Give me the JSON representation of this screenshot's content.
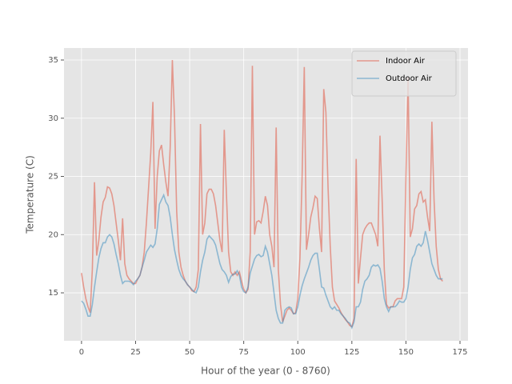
{
  "chart_data": {
    "type": "line",
    "xlabel": "Hour of the year (0 - 8760)",
    "ylabel": "Temperature (C)",
    "x": [
      0,
      1,
      2,
      3,
      4,
      5,
      6,
      7,
      8,
      9,
      10,
      11,
      12,
      13,
      14,
      15,
      16,
      17,
      18,
      19,
      20,
      21,
      22,
      23,
      24,
      25,
      26,
      27,
      28,
      29,
      30,
      31,
      32,
      33,
      34,
      35,
      36,
      37,
      38,
      39,
      40,
      41,
      42,
      43,
      44,
      45,
      46,
      47,
      48,
      49,
      50,
      51,
      52,
      53,
      54,
      55,
      56,
      57,
      58,
      59,
      60,
      61,
      62,
      63,
      64,
      65,
      66,
      67,
      68,
      69,
      70,
      71,
      72,
      73,
      74,
      75,
      76,
      77,
      78,
      79,
      80,
      81,
      82,
      83,
      84,
      85,
      86,
      87,
      88,
      89,
      90,
      91,
      92,
      93,
      94,
      95,
      96,
      97,
      98,
      99,
      100,
      101,
      102,
      103,
      104,
      105,
      106,
      107,
      108,
      109,
      110,
      111,
      112,
      113,
      114,
      115,
      116,
      117,
      118,
      119,
      120,
      121,
      122,
      123,
      124,
      125,
      126,
      127,
      128,
      129,
      130,
      131,
      132,
      133,
      134,
      135,
      136,
      137,
      138,
      139,
      140,
      141,
      142,
      143,
      144,
      145,
      146,
      147,
      148,
      149,
      150,
      151,
      152,
      153,
      154,
      155,
      156,
      157,
      158,
      159,
      160,
      161,
      162,
      163,
      164,
      165,
      166,
      167
    ],
    "series": [
      {
        "name": "Indoor Air",
        "color": "#E24A33",
        "values": [
          16.7,
          15.5,
          14.5,
          13.8,
          13.3,
          17,
          24.5,
          18.2,
          19.5,
          21.5,
          22.8,
          23.2,
          24.1,
          24,
          23.5,
          22.5,
          21,
          19.5,
          17.8,
          21.4,
          17.5,
          16.5,
          16.2,
          16,
          15.8,
          15.8,
          16.2,
          16.5,
          17.2,
          18.5,
          21,
          24,
          27,
          31.4,
          20.5,
          25,
          27.2,
          27.7,
          26,
          24.5,
          23.3,
          27.5,
          35,
          30,
          22,
          18.5,
          17.2,
          16.5,
          16,
          15.7,
          15.5,
          15.2,
          15.1,
          15.5,
          17,
          29.5,
          20,
          21,
          23.5,
          23.9,
          23.9,
          23.5,
          22.5,
          21,
          19.5,
          18.5,
          29,
          23.5,
          18.5,
          16.8,
          16.5,
          16.8,
          16.5,
          16.8,
          16,
          15.3,
          15,
          15.3,
          18.5,
          34.5,
          20,
          21.1,
          21.2,
          21,
          22,
          23.3,
          22.5,
          20,
          19,
          17.2,
          29.2,
          17,
          14,
          12.5,
          13,
          13.5,
          13.7,
          13.5,
          13.2,
          13.3,
          14.5,
          18,
          25,
          34.4,
          18.7,
          20,
          21.5,
          22.3,
          23.3,
          23.1,
          20.5,
          18.5,
          32.5,
          30.5,
          24,
          19,
          15.5,
          14.3,
          14,
          13.7,
          13.3,
          13,
          12.7,
          12.5,
          12.2,
          12.1,
          12.8,
          26.5,
          15.8,
          18,
          20,
          20.5,
          20.8,
          21,
          21,
          20.5,
          20,
          19,
          28.5,
          23,
          17,
          14,
          13.7,
          13.8,
          13.8,
          14.3,
          14.5,
          14.5,
          14.5,
          15.5,
          25,
          33.5,
          19.8,
          20.5,
          22.2,
          22.5,
          23.5,
          23.7,
          22.8,
          23,
          21.5,
          20.3,
          29.7,
          23,
          19,
          17,
          16.2,
          16
        ]
      },
      {
        "name": "Outdoor Air",
        "color": "#348ABD",
        "values": [
          14.3,
          14.1,
          13.6,
          13,
          13,
          14,
          15.5,
          16.8,
          18,
          18.8,
          19.3,
          19.3,
          19.8,
          20,
          19.8,
          19.2,
          18.3,
          17.5,
          16.5,
          15.8,
          16,
          16,
          16,
          15.9,
          15.7,
          16,
          16.2,
          16.5,
          17.2,
          17.8,
          18.5,
          18.8,
          19.1,
          18.9,
          19.2,
          20.5,
          22.6,
          23,
          23.4,
          22.8,
          22.5,
          21.5,
          20,
          18.7,
          17.8,
          17,
          16.5,
          16.2,
          16,
          15.7,
          15.5,
          15.3,
          15.1,
          15,
          15.5,
          16.8,
          17.8,
          18.5,
          19.6,
          19.9,
          19.7,
          19.5,
          19.1,
          18.3,
          17.5,
          17,
          16.8,
          16.5,
          15.9,
          16.4,
          16.6,
          16.6,
          16.9,
          16.5,
          15.5,
          15.1,
          15,
          15.5,
          16.7,
          17.3,
          17.9,
          18.2,
          18.3,
          18.1,
          18.2,
          19,
          18.5,
          17.5,
          16.5,
          15,
          13.5,
          12.8,
          12.4,
          12.4,
          13.5,
          13.7,
          13.8,
          13.7,
          13.2,
          13.2,
          13.8,
          14.8,
          15.6,
          16.2,
          16.7,
          17.2,
          17.8,
          18.2,
          18.4,
          18.4,
          17,
          15.5,
          15.4,
          14.8,
          14.3,
          13.8,
          13.6,
          13.8,
          13.5,
          13.5,
          13.2,
          13,
          12.8,
          12.5,
          12.4,
          12,
          12.5,
          13.8,
          13.8,
          14.2,
          15.3,
          16,
          16.2,
          16.5,
          17.2,
          17.4,
          17.3,
          17.4,
          17.1,
          16,
          14.5,
          13.8,
          13.4,
          13.8,
          13.8,
          13.8,
          14,
          14.3,
          14.2,
          14.2,
          14.5,
          15.5,
          17,
          18,
          18.3,
          19,
          19.2,
          19,
          19.3,
          20.3,
          19.5,
          18.5,
          17.5,
          17,
          16.5,
          16.2,
          16.2,
          16.2
        ]
      }
    ],
    "alpha": 0.5,
    "xlim": [
      -8.1,
      178.7
    ],
    "ylim": [
      10.88,
      36.03
    ],
    "xticks": [
      0,
      25,
      50,
      75,
      100,
      125,
      150,
      175
    ],
    "yticks": [
      15,
      20,
      25,
      30,
      35
    ],
    "grid": true,
    "legend": "upper right"
  }
}
